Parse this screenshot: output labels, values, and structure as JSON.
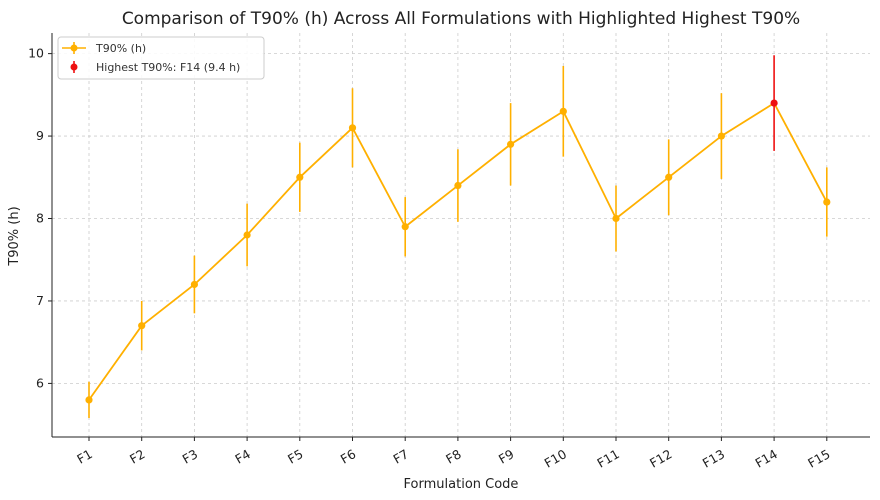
{
  "colors": {
    "series": "#FFB000",
    "highlight": "#EE1111",
    "grid": "#cccccc",
    "text": "#222222"
  },
  "chart_data": {
    "type": "line",
    "title": "Comparison of T90% (h) Across All Formulations with Highlighted Highest T90%",
    "xlabel": "Formulation Code",
    "ylabel": "T90% (h)",
    "categories": [
      "F1",
      "F2",
      "F3",
      "F4",
      "F5",
      "F6",
      "F7",
      "F8",
      "F9",
      "F10",
      "F11",
      "F12",
      "F13",
      "F14",
      "F15"
    ],
    "series": [
      {
        "name": "T90% (h)",
        "values": [
          5.8,
          6.7,
          7.2,
          7.8,
          8.5,
          9.1,
          7.9,
          8.4,
          8.9,
          9.3,
          8.0,
          8.5,
          9.0,
          9.4,
          8.2
        ],
        "errors": [
          0.22,
          0.3,
          0.35,
          0.38,
          0.42,
          0.48,
          0.36,
          0.44,
          0.5,
          0.55,
          0.4,
          0.46,
          0.52,
          0.58,
          0.42
        ]
      }
    ],
    "highlight": {
      "label": "Highest T90%: F14 (9.4 h)",
      "category": "F14",
      "value": 9.4,
      "error": 0.58
    },
    "ylim": [
      5.35,
      10.25
    ],
    "yticks": [
      "6",
      "7",
      "8",
      "9",
      "10"
    ],
    "grid": true,
    "legend_position": "top-left"
  }
}
